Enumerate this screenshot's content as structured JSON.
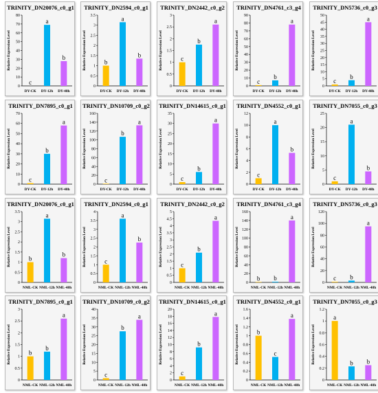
{
  "colors": {
    "ck": "#FFC000",
    "mid": "#00B0F0",
    "late": "#CC66FF"
  },
  "chart_data": [
    {
      "type": "bar",
      "title": "TRINITY_DN20076_c0_g1",
      "ylabel": "Relative Expression Level",
      "categories": [
        "DY-CK",
        "DY-12h",
        "DY-48h"
      ],
      "values": [
        0,
        69,
        28
      ],
      "letters": [
        "c",
        "a",
        "b"
      ],
      "ylim": [
        0,
        80
      ],
      "yticks": [
        0,
        10,
        20,
        30,
        40,
        50,
        60,
        70,
        80
      ]
    },
    {
      "type": "bar",
      "title": "TRINITY_DN2594_c0_g1",
      "ylabel": "Relative Expression Level",
      "categories": [
        "DY-CK",
        "DY-12h",
        "DY-48h"
      ],
      "values": [
        1,
        3.15,
        1.35
      ],
      "letters": [
        "b",
        "a",
        "b"
      ],
      "ylim": [
        0,
        3.5
      ],
      "yticks": [
        0,
        0.5,
        1,
        1.5,
        2,
        2.5,
        3,
        3.5
      ]
    },
    {
      "type": "bar",
      "title": "TRINITY_DN2442_c0_g2",
      "ylabel": "Relative Expression Level",
      "categories": [
        "DY-CK",
        "DY-12h",
        "DY-48h"
      ],
      "values": [
        1,
        1.75,
        2.6
      ],
      "letters": [
        "c",
        "b",
        "a"
      ],
      "ylim": [
        0,
        3
      ],
      "yticks": [
        0,
        0.5,
        1,
        1.5,
        2,
        2.5,
        3
      ]
    },
    {
      "type": "bar",
      "title": "TRINITY_DN4761_c3_g4",
      "ylabel": "Relative Expression Level",
      "categories": [
        "DY-CK",
        "DY-12h",
        "DY-48h"
      ],
      "values": [
        1,
        7,
        78
      ],
      "letters": [
        "c",
        "b",
        "a"
      ],
      "ylim": [
        0,
        90
      ],
      "yticks": [
        0,
        10,
        20,
        30,
        40,
        50,
        60,
        70,
        80,
        90
      ]
    },
    {
      "type": "bar",
      "title": "TRINITY_DN5736_c0_g3",
      "ylabel": "Relative Expression Level",
      "categories": [
        "DY-CK",
        "DY-12h",
        "DY-48h"
      ],
      "values": [
        1,
        4,
        45
      ],
      "letters": [
        "c",
        "b",
        "a"
      ],
      "ylim": [
        0,
        50
      ],
      "yticks": [
        0,
        5,
        10,
        15,
        20,
        25,
        30,
        35,
        40,
        45,
        50
      ]
    },
    {
      "type": "bar",
      "title": "TRINITY_DN7895_c0_g1",
      "ylabel": "Relative Expression Level",
      "categories": [
        "DY-CK",
        "DY-12h",
        "DY-48h"
      ],
      "values": [
        1,
        30,
        58
      ],
      "letters": [
        "c",
        "b",
        "a"
      ],
      "ylim": [
        0,
        70
      ],
      "yticks": [
        0,
        10,
        20,
        30,
        40,
        50,
        60,
        70
      ]
    },
    {
      "type": "bar",
      "title": "TRINITY_DN10709_c0_g2",
      "ylabel": "Relative Expression Level",
      "categories": [
        "DY-CK",
        "DY-12h",
        "DY-48h"
      ],
      "values": [
        1,
        107,
        133
      ],
      "letters": [
        "c",
        "b",
        "a"
      ],
      "ylim": [
        0,
        160
      ],
      "yticks": [
        0,
        20,
        40,
        60,
        80,
        100,
        120,
        140,
        160
      ]
    },
    {
      "type": "bar",
      "title": "TRINITY_DN14615_c0_g1",
      "ylabel": "Relative Expression Level",
      "categories": [
        "DY-CK",
        "DY-12h",
        "DY-48h"
      ],
      "values": [
        1,
        6,
        30
      ],
      "letters": [
        "c",
        "b",
        "a"
      ],
      "ylim": [
        0,
        35
      ],
      "yticks": [
        0,
        5,
        10,
        15,
        20,
        25,
        30,
        35
      ]
    },
    {
      "type": "bar",
      "title": "TRINITY_DN4552_c0_g1",
      "ylabel": "Relative Expression Level",
      "categories": [
        "DY-CK",
        "DY-12h",
        "DY-48h"
      ],
      "values": [
        1,
        10,
        5.3
      ],
      "letters": [
        "c",
        "a",
        "b"
      ],
      "ylim": [
        0,
        12
      ],
      "yticks": [
        0,
        2,
        4,
        6,
        8,
        10,
        12
      ]
    },
    {
      "type": "bar",
      "title": "TRINITY_DN7055_c0_g3",
      "ylabel": "Relative Expression Level",
      "categories": [
        "DY-CK",
        "DY-12h",
        "DY-48h"
      ],
      "values": [
        1,
        21,
        4.5
      ],
      "letters": [
        "c",
        "a",
        "b"
      ],
      "ylim": [
        0,
        25
      ],
      "yticks": [
        0,
        5,
        10,
        15,
        20,
        25
      ]
    },
    {
      "type": "bar",
      "title": "TRINITY_DN20076_c0_g1",
      "ylabel": "Relative Expression Level",
      "categories": [
        "NML-CK",
        "NML-12h",
        "NML-48h"
      ],
      "values": [
        1,
        3.15,
        1.2
      ],
      "letters": [
        "b",
        "a",
        "b"
      ],
      "ylim": [
        0,
        3.5
      ],
      "yticks": [
        0,
        0.5,
        1,
        1.5,
        2,
        2.5,
        3,
        3.5
      ]
    },
    {
      "type": "bar",
      "title": "TRINITY_DN2594_c0_g1",
      "ylabel": "Relative Expression Level",
      "categories": [
        "NML-CK",
        "NML-12h",
        "NML-48h"
      ],
      "values": [
        1,
        3.6,
        2.25
      ],
      "letters": [
        "c",
        "a",
        "b"
      ],
      "ylim": [
        0,
        4
      ],
      "yticks": [
        0,
        0.5,
        1,
        1.5,
        2,
        2.5,
        3,
        3.5,
        4
      ]
    },
    {
      "type": "bar",
      "title": "TRINITY_DN2442_c0_g2",
      "ylabel": "Relative Expression Level",
      "categories": [
        "NML-CK",
        "NML-12h",
        "NML-48h"
      ],
      "values": [
        1,
        2.1,
        4.35
      ],
      "letters": [
        "c",
        "b",
        "a"
      ],
      "ylim": [
        0,
        5
      ],
      "yticks": [
        0,
        0.5,
        1,
        1.5,
        2,
        2.5,
        3,
        3.5,
        4,
        4.5,
        5
      ]
    },
    {
      "type": "bar",
      "title": "TRINITY_DN4761_c3_g4",
      "ylabel": "Relative Expression Level",
      "categories": [
        "NML-CK",
        "NML-12h",
        "NML-48h"
      ],
      "values": [
        1,
        1.5,
        140
      ],
      "letters": [
        "b",
        "b",
        "a"
      ],
      "ylim": [
        0,
        160
      ],
      "yticks": [
        0,
        20,
        40,
        60,
        80,
        100,
        120,
        140,
        160
      ]
    },
    {
      "type": "bar",
      "title": "TRINITY_DN5736_c0_g3",
      "ylabel": "Relative Expression Level",
      "categories": [
        "NML-CK",
        "NML-12h",
        "NML-48h"
      ],
      "values": [
        1,
        3,
        95
      ],
      "letters": [
        "c",
        "b",
        "a"
      ],
      "ylim": [
        0,
        120
      ],
      "yticks": [
        0,
        20,
        40,
        60,
        80,
        100,
        120
      ]
    },
    {
      "type": "bar",
      "title": "TRINITY_DN7895_c0_g1",
      "ylabel": "Relative Expression Level",
      "categories": [
        "NML-CK",
        "NML-12h",
        "NML-48h"
      ],
      "values": [
        1,
        1.2,
        2.6
      ],
      "letters": [
        "b",
        "b",
        "a"
      ],
      "ylim": [
        0,
        3
      ],
      "yticks": [
        0,
        0.5,
        1,
        1.5,
        2,
        2.5,
        3
      ]
    },
    {
      "type": "bar",
      "title": "TRINITY_DN10709_c0_g2",
      "ylabel": "Relative Expression Level",
      "categories": [
        "NML-CK",
        "NML-12h",
        "NML-48h"
      ],
      "values": [
        1,
        27.5,
        34
      ],
      "letters": [
        "c",
        "b",
        "a"
      ],
      "ylim": [
        0,
        40
      ],
      "yticks": [
        0,
        5,
        10,
        15,
        20,
        25,
        30,
        35,
        40
      ]
    },
    {
      "type": "bar",
      "title": "TRINITY_DN14615_c0_g1",
      "ylabel": "Relative Expression Level",
      "categories": [
        "NML-CK",
        "NML-12h",
        "NML-48h"
      ],
      "values": [
        1,
        9.2,
        17.8
      ],
      "letters": [
        "c",
        "b",
        "a"
      ],
      "ylim": [
        0,
        20
      ],
      "yticks": [
        0,
        2,
        4,
        6,
        8,
        10,
        12,
        14,
        16,
        18,
        20
      ]
    },
    {
      "type": "bar",
      "title": "TRINITY_DN4552_c0_g1",
      "ylabel": "Relative Expression Level",
      "categories": [
        "NML-CK",
        "NML-12h",
        "NML-48h"
      ],
      "values": [
        1,
        0.52,
        1.38
      ],
      "letters": [
        "b",
        "c",
        "a"
      ],
      "ylim": [
        0,
        1.6
      ],
      "yticks": [
        0,
        0.2,
        0.4,
        0.6,
        0.8,
        1,
        1.2,
        1.4,
        1.6
      ]
    },
    {
      "type": "bar",
      "title": "TRINITY_DN7055_c0_g3",
      "ylabel": "Relative Expression Level",
      "categories": [
        "NML-CK",
        "NML-12h",
        "NML-48h"
      ],
      "values": [
        1,
        0.23,
        0.25
      ],
      "letters": [
        "a",
        "b",
        "b"
      ],
      "ylim": [
        0,
        1.2
      ],
      "yticks": [
        0,
        0.2,
        0.4,
        0.6,
        0.8,
        1,
        1.2
      ]
    }
  ]
}
